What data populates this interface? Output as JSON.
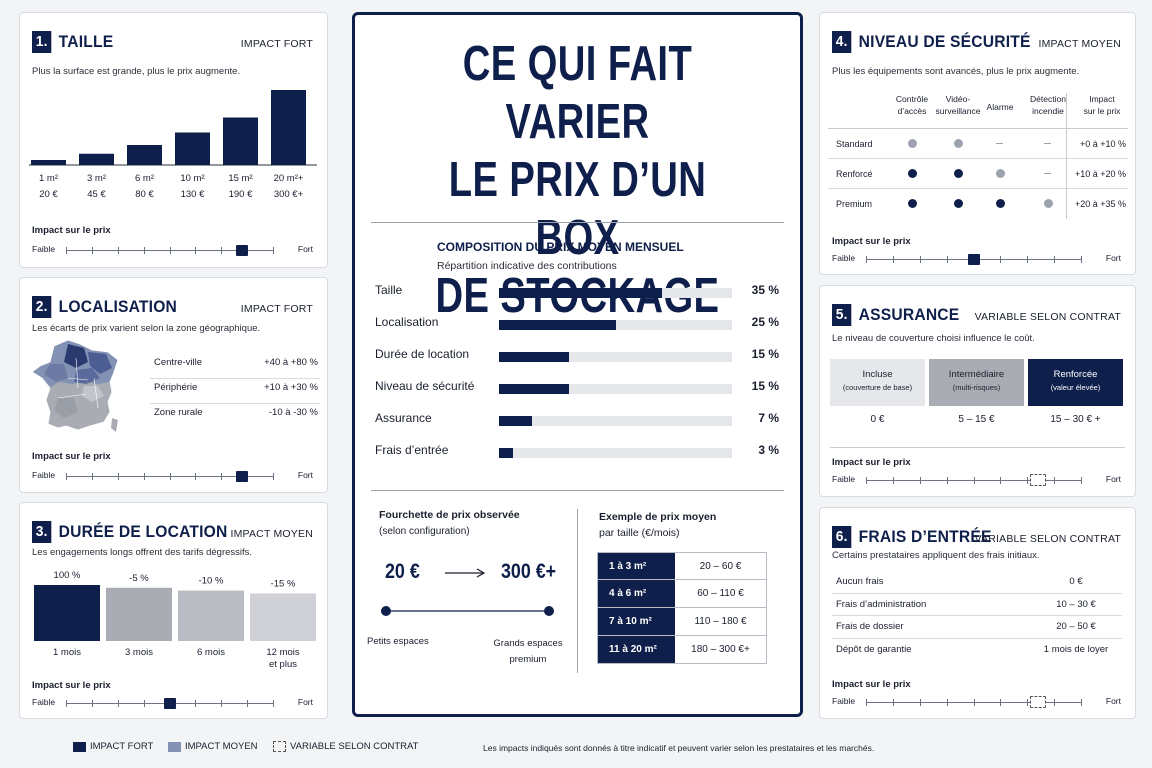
{
  "colors": {
    "navy": "#0f1f4b",
    "mid_gray": "#a9acb3",
    "light_gray": "#e6e7ea",
    "dot_gray": "#9ca3af"
  },
  "main": {
    "title_lines": [
      "CE QUI FAIT VARIER",
      "LE PRIX D’UN BOX",
      "DE STOCKAGE"
    ],
    "composition_title": "COMPOSITION DU PRIX MOYEN MENSUEL",
    "composition_subtitle": "Répartition indicative des contributions",
    "range_title": "Fourchette de prix observée",
    "range_subtitle": "(selon configuration)",
    "range_min": "20 €",
    "range_max": "300 €+",
    "range_left_label": "Petits espaces",
    "range_right_label_1": "Grands espaces",
    "range_right_label_2": "premium",
    "example_title_1": "Exemple de prix moyen",
    "example_title_2": "par taille (€/mois)",
    "example_rows": [
      {
        "size": "1 à 3 m²",
        "price": "20 – 60 €"
      },
      {
        "size": "4 à 6 m²",
        "price": "60 – 110 €"
      },
      {
        "size": "7 à 10 m²",
        "price": "110 – 180 €"
      },
      {
        "size": "11 à 20 m²",
        "price": "180 – 300 €+"
      }
    ]
  },
  "chart_data": [
    {
      "type": "bar",
      "title": "TAILLE",
      "categories": [
        "1 m²",
        "3 m²",
        "6 m²",
        "10 m²",
        "15 m²",
        "20 m²+"
      ],
      "values": [
        20,
        45,
        80,
        130,
        190,
        300
      ],
      "value_labels": [
        "20 €",
        "45 €",
        "80 €",
        "130 €",
        "190 €",
        "300 €+"
      ]
    },
    {
      "type": "bar",
      "title": "COMPOSITION DU PRIX MOYEN MENSUEL",
      "categories": [
        "Taille",
        "Localisation",
        "Durée de location",
        "Niveau de sécurité",
        "Assurance",
        "Frais d’entrée"
      ],
      "values": [
        35,
        25,
        15,
        15,
        7,
        3
      ],
      "value_labels": [
        "35 %",
        "25 %",
        "15 %",
        "15 %",
        "7 %",
        "3 %"
      ],
      "xlim": [
        0,
        50
      ]
    },
    {
      "type": "bar",
      "title": "DURÉE DE LOCATION",
      "categories": [
        "1 mois",
        "3 mois",
        "6 mois",
        "12 mois et plus"
      ],
      "values": [
        100,
        95,
        90,
        85
      ],
      "value_labels": [
        "100 %",
        "-5 %",
        "-10 %",
        "-15 %"
      ]
    }
  ],
  "cards": {
    "taille": {
      "num": "1.",
      "title": "TAILLE",
      "tag": "IMPACT FORT",
      "desc": "Plus la surface est grande, plus le prix augmente.",
      "impact_label": "Impact sur le prix",
      "low": "Faible",
      "high": "Fort",
      "level": 0.85
    },
    "localisation": {
      "num": "2.",
      "title": "LOCALISATION",
      "tag": "IMPACT FORT",
      "desc": "Les écarts de prix varient selon la zone géographique.",
      "zones": [
        {
          "name": "Centre-ville",
          "value": "+40 à +80 %"
        },
        {
          "name": "Périphérie",
          "value": "+10 à +30 %"
        },
        {
          "name": "Zone rurale",
          "value": "-10 à -30 %"
        }
      ],
      "impact_label": "Impact sur le prix",
      "low": "Faible",
      "high": "Fort",
      "level": 0.85
    },
    "duree": {
      "num": "3.",
      "title": "DURÉE DE LOCATION",
      "tag": "IMPACT MOYEN",
      "desc": "Les engagements longs offrent des tarifs dégressifs.",
      "bar_labels_top": [
        "100 %",
        "-5 %",
        "-10 %",
        "-15 %"
      ],
      "bar_labels_bottom": [
        "1 mois",
        "3 mois",
        "6 mois",
        "12 mois",
        "et plus"
      ],
      "impact_label": "Impact sur le prix",
      "low": "Faible",
      "high": "Fort",
      "level": 0.5
    },
    "securite": {
      "num": "4.",
      "title": "NIVEAU DE SÉCURITÉ",
      "tag": "IMPACT MOYEN",
      "desc": "Plus les équipements sont avancés, plus le prix augmente.",
      "headers": [
        "Contrôle d’accès",
        "Vidéo-surveillance",
        "Alarme",
        "Détection incendie",
        "Impact sur le prix"
      ],
      "header_lines": [
        [
          "Contrôle",
          "d’accès"
        ],
        [
          "Vidéo-",
          "surveillance"
        ],
        [
          "Alarme"
        ],
        [
          "Détection",
          "incendie"
        ],
        [
          "Impact",
          "sur le prix"
        ]
      ],
      "rows": [
        {
          "name": "Standard",
          "cells": [
            "gray",
            "gray",
            "dash",
            "dash"
          ],
          "impact": "+0 à +10 %"
        },
        {
          "name": "Renforcé",
          "cells": [
            "navy",
            "navy",
            "gray",
            "dash"
          ],
          "impact": "+10 à +20 %"
        },
        {
          "name": "Premium",
          "cells": [
            "navy",
            "navy",
            "navy",
            "gray"
          ],
          "impact": "+20 à +35 %"
        }
      ],
      "impact_label": "Impact sur le prix",
      "low": "Faible",
      "high": "Fort",
      "level": 0.5
    },
    "assurance": {
      "num": "5.",
      "title": "ASSURANCE",
      "tag": "VARIABLE SELON CONTRAT",
      "desc": "Le niveau de couverture choisi influence le coût.",
      "options": [
        {
          "name": "Incluse",
          "sub": "(couverture de base)",
          "price": "0 €"
        },
        {
          "name": "Intermédiaire",
          "sub": "(multi-risques)",
          "price": "5 – 15 €"
        },
        {
          "name": "Renforcée",
          "sub": "(valeur élevée)",
          "price": "15 – 30 € +"
        }
      ],
      "impact_label": "Impact sur le prix",
      "low": "Faible",
      "high": "Fort",
      "level": 0.8
    },
    "frais": {
      "num": "6.",
      "title": "FRAIS D’ENTRÉE",
      "tag": "VARIABLE SELON CONTRAT",
      "desc": "Certains prestataires appliquent des frais initiaux.",
      "rows": [
        {
          "name": "Aucun frais",
          "value": "0 €"
        },
        {
          "name": "Frais d’administration",
          "value": "10 – 30 €"
        },
        {
          "name": "Frais de dossier",
          "value": "20 – 50 €"
        },
        {
          "name": "Dépôt de garantie",
          "value": "1 mois de loyer"
        }
      ],
      "impact_label": "Impact sur le prix",
      "low": "Faible",
      "high": "Fort",
      "level": 0.8
    }
  },
  "legend": {
    "fort": "IMPACT FORT",
    "moyen": "IMPACT MOYEN",
    "variable": "VARIABLE SELON CONTRAT",
    "note": "Les impacts indiqués sont donnés à titre indicatif et peuvent varier selon les prestataires et les marchés."
  }
}
